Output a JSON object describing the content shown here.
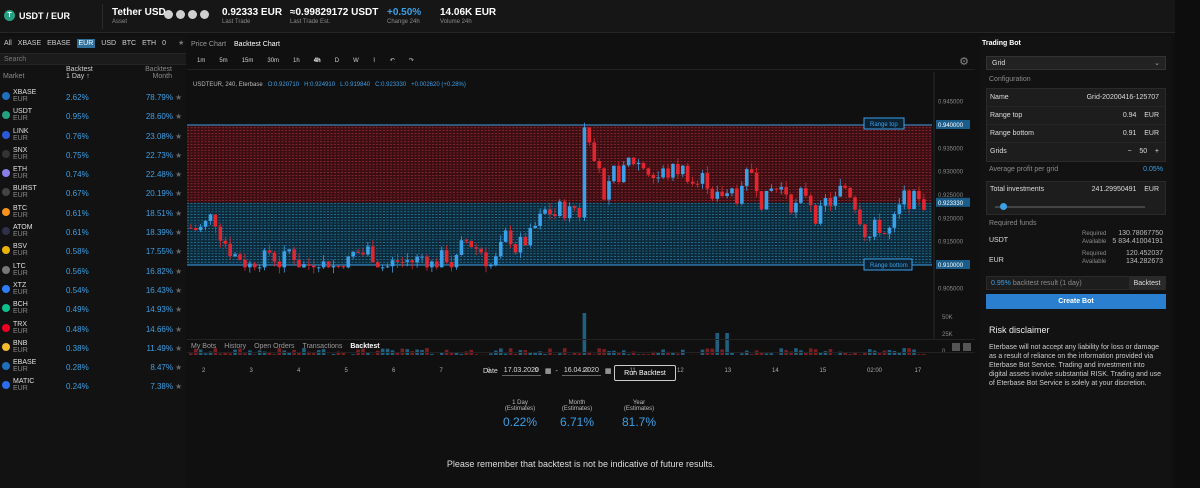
{
  "header": {
    "pair": "USDT / EUR",
    "asset_name": "Tether USD",
    "asset_label": "Asset",
    "last_trade": "0.92333 EUR",
    "last_trade_label": "Last Trade",
    "last_trade_est": "≈0.99829172 USDT",
    "last_trade_est_label": "Last Trade Est.",
    "change": "+0.50%",
    "change_label": "Change 24h",
    "volume": "14.06K EUR",
    "volume_label": "Volume 24h"
  },
  "markets": {
    "tabs": [
      "All",
      "XBASE",
      "EBASE",
      "EUR",
      "USD",
      "BTC",
      "ETH",
      "0"
    ],
    "active_tab": "EUR",
    "search_placeholder": "Search",
    "col_market": "Market",
    "col_backtest": "Backtest",
    "col_backtest_sub": "1 Day ↑",
    "col_month": "Backtest",
    "col_month_sub": "Month",
    "rows": [
      {
        "sym": "XBASE",
        "cur": "EUR",
        "day": "2.62%",
        "month": "78.79%",
        "color": "#1f6fbf"
      },
      {
        "sym": "USDT",
        "cur": "EUR",
        "day": "0.95%",
        "month": "28.60%",
        "color": "#25a182"
      },
      {
        "sym": "LINK",
        "cur": "EUR",
        "day": "0.76%",
        "month": "23.08%",
        "color": "#2a5ada"
      },
      {
        "sym": "SNX",
        "cur": "EUR",
        "day": "0.75%",
        "month": "22.73%",
        "color": "#333"
      },
      {
        "sym": "ETH",
        "cur": "EUR",
        "day": "0.74%",
        "month": "22.48%",
        "color": "#8a7fe8"
      },
      {
        "sym": "BURST",
        "cur": "EUR",
        "day": "0.67%",
        "month": "20.19%",
        "color": "#444"
      },
      {
        "sym": "BTC",
        "cur": "EUR",
        "day": "0.61%",
        "month": "18.51%",
        "color": "#f7931a"
      },
      {
        "sym": "ATOM",
        "cur": "EUR",
        "day": "0.61%",
        "month": "18.39%",
        "color": "#2e3148"
      },
      {
        "sym": "BSV",
        "cur": "EUR",
        "day": "0.58%",
        "month": "17.55%",
        "color": "#eab300"
      },
      {
        "sym": "LTC",
        "cur": "EUR",
        "day": "0.56%",
        "month": "16.82%",
        "color": "#777"
      },
      {
        "sym": "XTZ",
        "cur": "EUR",
        "day": "0.54%",
        "month": "16.43%",
        "color": "#2c7df7"
      },
      {
        "sym": "BCH",
        "cur": "EUR",
        "day": "0.49%",
        "month": "14.93%",
        "color": "#0ac18e"
      },
      {
        "sym": "TRX",
        "cur": "EUR",
        "day": "0.48%",
        "month": "14.66%",
        "color": "#ef0027"
      },
      {
        "sym": "BNB",
        "cur": "EUR",
        "day": "0.38%",
        "month": "11.49%",
        "color": "#f3ba2f"
      },
      {
        "sym": "EBASE",
        "cur": "EUR",
        "day": "0.28%",
        "month": "8.47%",
        "color": "#1f6fbf"
      },
      {
        "sym": "MATIC",
        "cur": "EUR",
        "day": "0.24%",
        "month": "7.38%",
        "color": "#2b6def"
      }
    ]
  },
  "center": {
    "tabs": [
      "Price Chart",
      "Backtest Chart"
    ],
    "active_tab": "Backtest Chart",
    "timeframes": [
      "1m",
      "5m",
      "15m",
      "30m",
      "1h",
      "4h",
      "D",
      "W"
    ],
    "active_tf": "4h",
    "legend_title": "USDTEUR, 240, Eterbase",
    "legend_o": "O:0.920710",
    "legend_h": "H:0.924910",
    "legend_l": "L:0.919840",
    "legend_c": "C:0.923330",
    "legend_chg": "+0.002620 (+0.28%)",
    "range_top_label": "Range top",
    "range_bottom_label": "Range bottom",
    "bottom_tabs": [
      "My Bots",
      "History",
      "Open Orders",
      "Transactions",
      "Backtest"
    ],
    "active_bottom_tab": "Backtest",
    "date_label": "Date",
    "date_from": "17.03.2020",
    "date_to": "16.04.2020",
    "run_button": "Run Backtest",
    "estimates": [
      {
        "label": "1 Day",
        "sub": "(Estimates)",
        "value": "0.22%"
      },
      {
        "label": "Month",
        "sub": "(Estimates)",
        "value": "6.71%"
      },
      {
        "label": "Year",
        "sub": "(Estimates)",
        "value": "81.7%"
      }
    ],
    "disclaimer": "Please remember that backtest is not be indicative of future results."
  },
  "chart_data": {
    "type": "candlestick",
    "price_ticks": [
      "0.945000",
      "0.940000",
      "0.935000",
      "0.930000",
      "0.925000",
      "0.923330",
      "0.920000",
      "0.915000",
      "0.910000",
      "0.905000"
    ],
    "volume_ticks": [
      "50K",
      "25K",
      "0"
    ],
    "x_ticks": [
      "2",
      "3",
      "4",
      "5",
      "6",
      "7",
      "8",
      "9",
      "10",
      "11",
      "12",
      "13",
      "14",
      "15",
      "02:00",
      "17"
    ],
    "range_top": 0.94,
    "range_bottom": 0.91,
    "last_price": 0.92333,
    "ylim": [
      0.9025,
      0.9475
    ]
  },
  "bot": {
    "title": "Trading Bot",
    "type": "Grid",
    "config_label": "Configuration",
    "name_label": "Name",
    "name_value": "Grid-20200416-125707",
    "range_top_label": "Range top",
    "range_top_value": "0.94",
    "range_top_cur": "EUR",
    "range_bottom_label": "Range bottom",
    "range_bottom_value": "0.91",
    "range_bottom_cur": "EUR",
    "grids_label": "Grids",
    "grids_value": "50",
    "avg_label": "Average profit per grid",
    "avg_value": "0.05%",
    "total_label": "Total investments",
    "total_value": "241.29950491",
    "total_cur": "EUR",
    "required_funds_label": "Required funds",
    "funds": [
      {
        "cur": "USDT",
        "required": "130.78067750",
        "available": "5 834.41004191"
      },
      {
        "cur": "EUR",
        "required": "120.452037",
        "available": "134.282673"
      }
    ],
    "required_label": "Required",
    "available_label": "Available",
    "backtest_pct": "0.95%",
    "backtest_text": "backtest result (1 day)",
    "backtest_button": "Backtest",
    "create_button": "Create Bot",
    "risk_title": "Risk disclaimer",
    "risk_text": "Eterbase will not accept any liability for loss or damage as a result of reliance on the information provided via Eterbase Bot Service. Trading and investment into digital assets involve substantial RISK. Trading and use of Eterbase Bot Service is solely at your discretion."
  }
}
